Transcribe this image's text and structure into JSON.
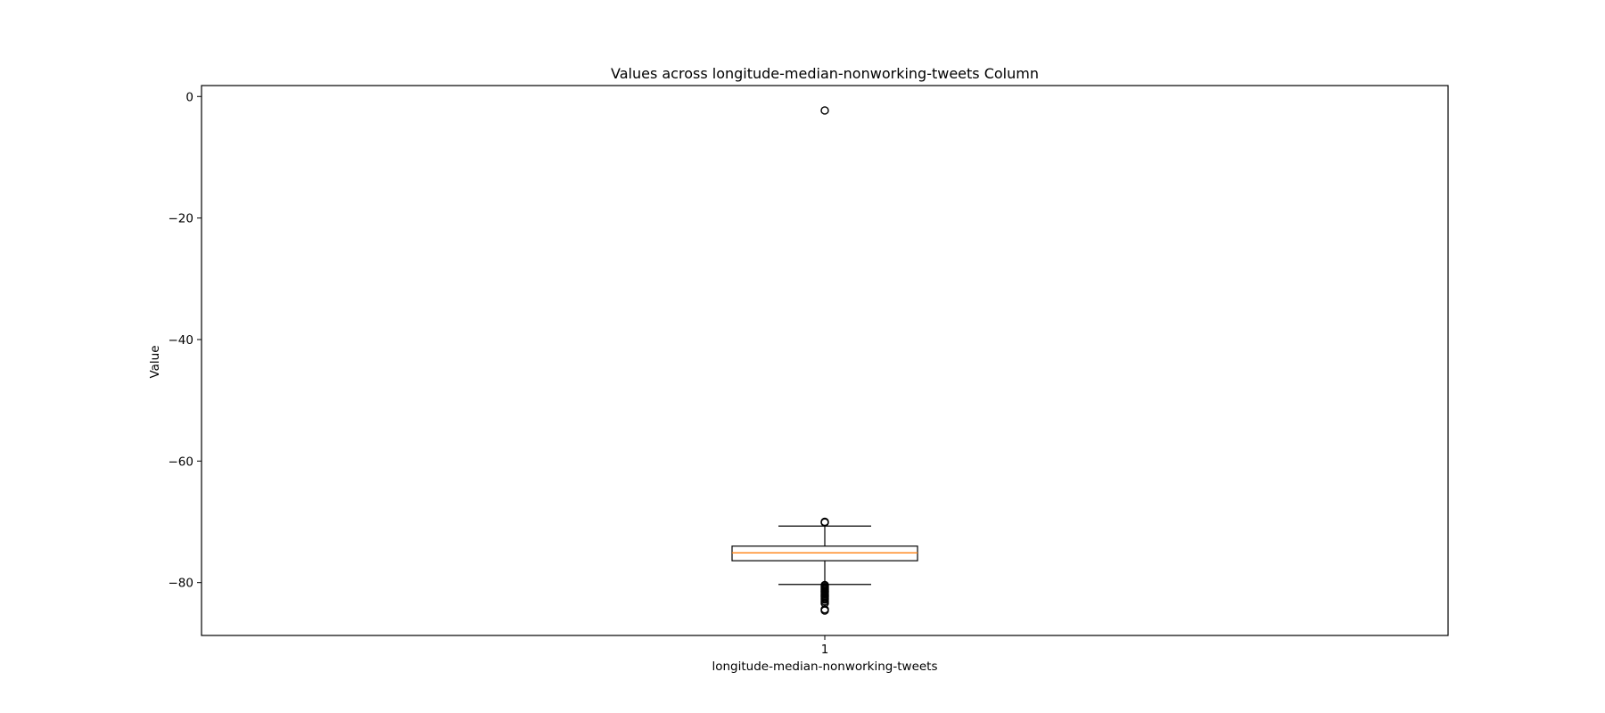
{
  "chart_data": {
    "type": "box",
    "title": "Values across longitude-median-nonworking-tweets Column",
    "xlabel": "longitude-median-nonworking-tweets",
    "ylabel": "Value",
    "categories": [
      "1"
    ],
    "ylim": [
      -88.7,
      1.8
    ],
    "yticks": [
      0,
      -20,
      -40,
      -60,
      -80
    ],
    "ytick_labels": [
      "0",
      "−20",
      "−40",
      "−60",
      "−80"
    ],
    "grid": false,
    "legend": "none",
    "boxes": [
      {
        "category": "1",
        "whisker_high": -70.7,
        "q3": -74.0,
        "median": -75.1,
        "q1": -76.4,
        "whisker_low": -80.3,
        "outliers": [
          -2.3,
          -70.0,
          -70.1,
          -80.4,
          -80.6,
          -80.8,
          -81.0,
          -81.2,
          -81.4,
          -81.6,
          -81.8,
          -82.0,
          -82.2,
          -82.4,
          -82.6,
          -82.8,
          -83.1,
          -83.4,
          -84.4,
          -84.6
        ]
      }
    ],
    "colors": {
      "box": "#000000",
      "median": "#ff7f0e",
      "outlier": "#000000"
    }
  }
}
